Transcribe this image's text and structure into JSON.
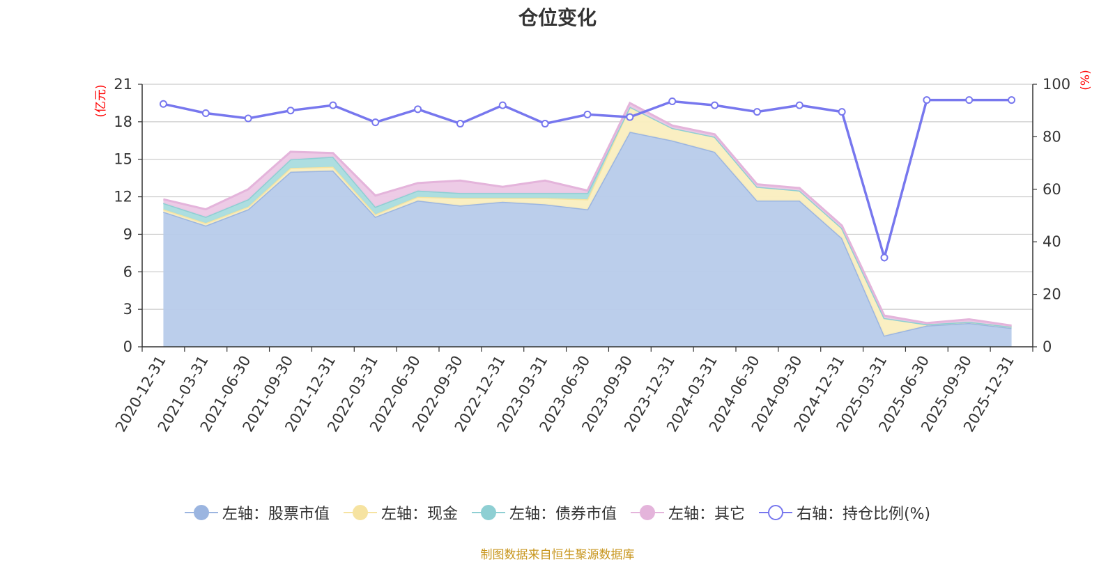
{
  "chart_data": {
    "type": "area",
    "title": "仓位变化",
    "left_axis_label": "(亿元)",
    "right_axis_label": "(%)",
    "left_ylim": [
      0,
      21
    ],
    "left_yticks": [
      0,
      3,
      6,
      9,
      12,
      15,
      18,
      21
    ],
    "right_ylim": [
      0,
      100
    ],
    "right_yticks": [
      0,
      20,
      40,
      60,
      80,
      100
    ],
    "categories": [
      "2020-12-31",
      "2021-03-31",
      "2021-06-30",
      "2021-09-30",
      "2021-12-31",
      "2022-03-31",
      "2022-06-30",
      "2022-09-30",
      "2022-12-31",
      "2023-03-31",
      "2023-06-30",
      "2023-09-30",
      "2023-12-31",
      "2024-03-31",
      "2024-06-30",
      "2024-09-30",
      "2024-12-31",
      "2025-03-31",
      "2025-06-30",
      "2025-09-30",
      "2025-12-31"
    ],
    "stacked_series": [
      {
        "name": "左轴：股票市值",
        "axis": "left",
        "color": "#9bb5e0",
        "fill": "#b7cbea",
        "values": [
          10.8,
          9.7,
          11.0,
          14.0,
          14.1,
          10.4,
          11.7,
          11.3,
          11.6,
          11.4,
          11.0,
          17.2,
          16.5,
          15.6,
          11.7,
          11.7,
          8.7,
          0.9,
          1.7,
          1.9,
          1.5
        ]
      },
      {
        "name": "左轴：现金",
        "axis": "left",
        "color": "#f6e3a1",
        "fill": "#faeebf",
        "values": [
          0.2,
          0.2,
          0.2,
          0.3,
          0.3,
          0.2,
          0.3,
          0.6,
          0.3,
          0.5,
          0.8,
          2.0,
          1.0,
          1.2,
          1.1,
          0.8,
          0.8,
          1.4,
          0.1,
          0.1,
          0.1
        ]
      },
      {
        "name": "左轴：债券市值",
        "axis": "left",
        "color": "#8ecfd3",
        "fill": "#a9dcde",
        "values": [
          0.5,
          0.5,
          0.6,
          0.7,
          0.8,
          0.6,
          0.5,
          0.4,
          0.4,
          0.4,
          0.5,
          0.0,
          0.0,
          0.0,
          0.0,
          0.0,
          0.0,
          0.0,
          0.0,
          0.0,
          0.0
        ]
      },
      {
        "name": "左轴：其它",
        "axis": "left",
        "color": "#e4b4db",
        "fill": "#ecc8e5",
        "values": [
          0.3,
          0.6,
          0.8,
          0.6,
          0.3,
          0.9,
          0.6,
          1.0,
          0.5,
          1.0,
          0.2,
          0.3,
          0.2,
          0.2,
          0.2,
          0.2,
          0.2,
          0.2,
          0.1,
          0.2,
          0.1
        ]
      }
    ],
    "line_series": {
      "name": "右轴：持仓比例(%)",
      "axis": "right",
      "color": "#7777ee",
      "values": [
        92.5,
        89.0,
        87.0,
        90.0,
        92.0,
        85.5,
        90.5,
        85.0,
        92.0,
        85.0,
        88.5,
        87.5,
        93.5,
        92.0,
        89.5,
        92.0,
        89.5,
        34.0,
        94.0,
        94.0,
        94.0
      ]
    }
  },
  "legend": [
    {
      "label": "左轴：股票市值",
      "line_color": "#9bb5e0",
      "dot_fill": "#9bb5e0",
      "dot_stroke": "#9bb5e0"
    },
    {
      "label": "左轴：现金",
      "line_color": "#f6e3a1",
      "dot_fill": "#f6e3a1",
      "dot_stroke": "#f6e3a1"
    },
    {
      "label": "左轴：债券市值",
      "line_color": "#8ecfd3",
      "dot_fill": "#8ecfd3",
      "dot_stroke": "#8ecfd3"
    },
    {
      "label": "左轴：其它",
      "line_color": "#e4b4db",
      "dot_fill": "#e4b4db",
      "dot_stroke": "#e4b4db"
    },
    {
      "label": "右轴：持仓比例(%)",
      "line_color": "#7777ee",
      "dot_fill": "#ffffff",
      "dot_stroke": "#7777ee"
    }
  ],
  "source": "制图数据来自恒生聚源数据库",
  "colors": {
    "axis_label_red": "#ff0000",
    "grid": "#cccccc",
    "axis": "#333333"
  }
}
